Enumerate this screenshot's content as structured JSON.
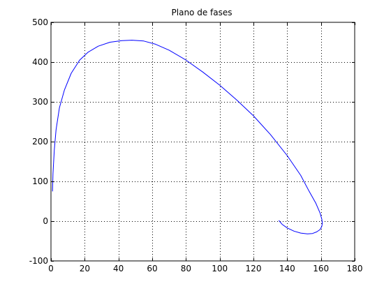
{
  "chart_data": {
    "type": "line",
    "title": "Plano de fases",
    "xlabel": "",
    "ylabel": "",
    "xlim": [
      0,
      180
    ],
    "ylim": [
      -100,
      500
    ],
    "xticks": [
      0,
      20,
      40,
      60,
      80,
      100,
      120,
      140,
      160,
      180
    ],
    "yticks": [
      -100,
      0,
      100,
      200,
      300,
      400,
      500
    ],
    "xtick_labels": [
      "0",
      "20",
      "40",
      "60",
      "80",
      "100",
      "120",
      "140",
      "160",
      "180"
    ],
    "ytick_labels": [
      "-100",
      "0",
      "100",
      "200",
      "300",
      "400",
      "500"
    ],
    "grid": true,
    "series": [
      {
        "color": "#0000ff",
        "x": [
          0.9,
          1.2,
          2,
          3,
          5,
          8,
          12,
          17,
          22,
          28,
          35,
          42,
          48,
          55,
          62,
          70,
          80,
          90,
          100,
          110,
          120,
          130,
          140,
          148,
          153,
          157,
          159.5,
          160.5,
          160.8,
          160.5,
          159.5,
          157.5,
          155,
          152,
          148,
          144,
          140,
          137,
          135
        ],
        "y": [
          75,
          120,
          180,
          230,
          285,
          330,
          372,
          405,
          425,
          440,
          450,
          454,
          455,
          453,
          445,
          430,
          405,
          375,
          342,
          305,
          265,
          218,
          165,
          115,
          75,
          45,
          20,
          5,
          -5,
          -13,
          -21,
          -27,
          -31,
          -32,
          -30,
          -25,
          -17,
          -8,
          2
        ]
      }
    ]
  }
}
